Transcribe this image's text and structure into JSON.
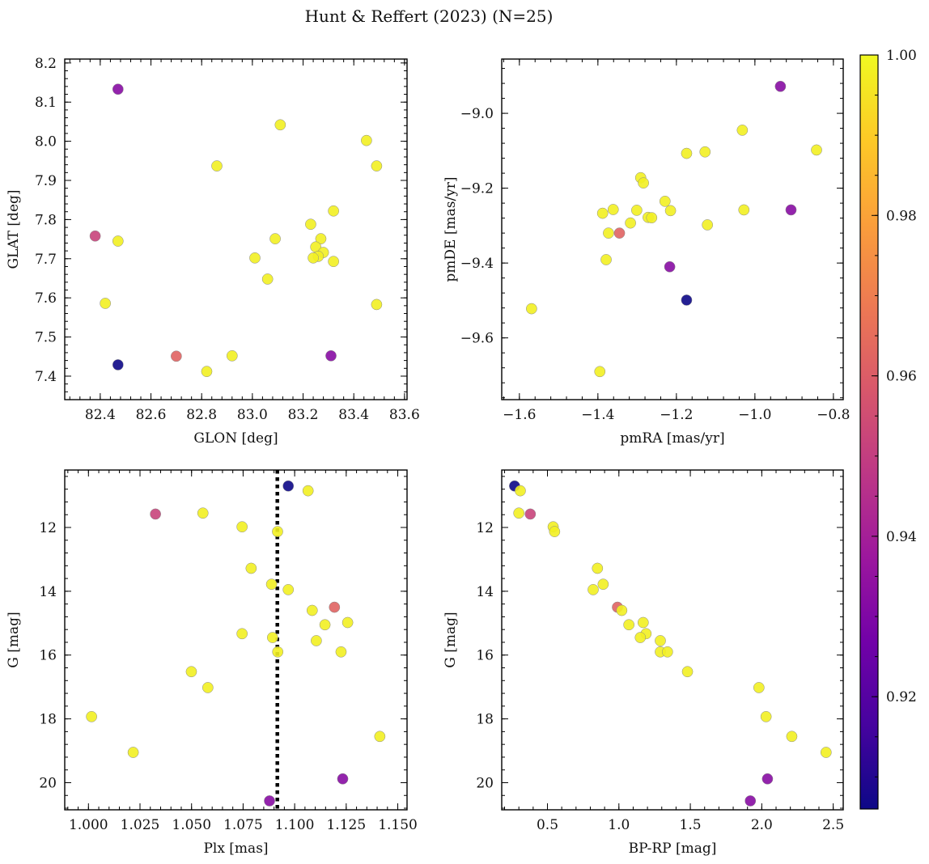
{
  "figure": {
    "title": "Hunt & Reffert (2023) (N=25)"
  },
  "colorbar": {
    "vmin": 0.906,
    "vmax": 1.0,
    "ticks": [
      0.92,
      0.94,
      0.96,
      0.98,
      1.0
    ],
    "tick_labels": [
      "0.92",
      "0.94",
      "0.96",
      "0.98",
      "1.00"
    ],
    "colormap": "plasma",
    "colormap_stops": [
      "#0d0887",
      "#46039f",
      "#7201a8",
      "#9c179e",
      "#bd3786",
      "#d8576b",
      "#ed7953",
      "#fb9f3a",
      "#fdca26",
      "#f0f921"
    ]
  },
  "chart_data": [
    {
      "type": "scatter",
      "id": "sky",
      "xlabel": "GLON [deg]",
      "ylabel": "GLAT [deg]",
      "xlim": [
        82.26,
        83.61
      ],
      "ylim": [
        7.34,
        8.21
      ],
      "xticks": [
        82.4,
        82.6,
        82.8,
        83.0,
        83.2,
        83.4,
        83.6
      ],
      "xtick_labels": [
        "82.4",
        "82.6",
        "82.8",
        "83.0",
        "83.2",
        "83.4",
        "83.6"
      ],
      "yticks": [
        7.4,
        7.5,
        7.6,
        7.7,
        7.8,
        7.9,
        8.0,
        8.1,
        8.2
      ],
      "ytick_labels": [
        "7.4",
        "7.5",
        "7.6",
        "7.7",
        "7.8",
        "7.9",
        "8.0",
        "8.1",
        "8.2"
      ],
      "points": [
        {
          "x": 82.47,
          "y": 8.133,
          "c": 0.932
        },
        {
          "x": 83.11,
          "y": 8.042,
          "c": 0.998
        },
        {
          "x": 83.45,
          "y": 8.002,
          "c": 0.998
        },
        {
          "x": 82.86,
          "y": 7.937,
          "c": 0.998
        },
        {
          "x": 83.49,
          "y": 7.937,
          "c": 0.998
        },
        {
          "x": 83.32,
          "y": 7.822,
          "c": 0.998
        },
        {
          "x": 83.23,
          "y": 7.788,
          "c": 0.998
        },
        {
          "x": 82.38,
          "y": 7.758,
          "c": 0.952
        },
        {
          "x": 82.47,
          "y": 7.745,
          "c": 0.998
        },
        {
          "x": 83.09,
          "y": 7.751,
          "c": 0.998
        },
        {
          "x": 83.27,
          "y": 7.751,
          "c": 0.998
        },
        {
          "x": 83.25,
          "y": 7.73,
          "c": 0.998
        },
        {
          "x": 83.28,
          "y": 7.716,
          "c": 0.998
        },
        {
          "x": 83.26,
          "y": 7.706,
          "c": 0.998
        },
        {
          "x": 83.24,
          "y": 7.702,
          "c": 0.998
        },
        {
          "x": 83.01,
          "y": 7.702,
          "c": 0.998
        },
        {
          "x": 83.32,
          "y": 7.693,
          "c": 0.998
        },
        {
          "x": 83.06,
          "y": 7.648,
          "c": 0.998
        },
        {
          "x": 82.42,
          "y": 7.586,
          "c": 0.998
        },
        {
          "x": 83.49,
          "y": 7.583,
          "c": 0.998
        },
        {
          "x": 82.7,
          "y": 7.451,
          "c": 0.962
        },
        {
          "x": 82.92,
          "y": 7.452,
          "c": 0.998
        },
        {
          "x": 83.31,
          "y": 7.452,
          "c": 0.932
        },
        {
          "x": 82.47,
          "y": 7.429,
          "c": 0.906
        },
        {
          "x": 82.82,
          "y": 7.412,
          "c": 0.998
        }
      ]
    },
    {
      "type": "scatter",
      "id": "pm",
      "xlabel": "pmRA [mas/yr]",
      "ylabel": "pmDE [mas/yr]",
      "xlim": [
        -1.645,
        -0.775
      ],
      "ylim": [
        -9.765,
        -8.855
      ],
      "xticks": [
        -1.6,
        -1.4,
        -1.2,
        -1.0,
        -0.8
      ],
      "xtick_labels": [
        "−1.6",
        "−1.4",
        "−1.2",
        "−1.0",
        "−0.8"
      ],
      "yticks": [
        -9.6,
        -9.4,
        -9.2,
        -9.0
      ],
      "ytick_labels": [
        "−9.6",
        "−9.4",
        "−9.2",
        "−9.0"
      ],
      "points": [
        {
          "x": -0.935,
          "y": -8.928,
          "c": 0.932
        },
        {
          "x": -1.032,
          "y": -9.045,
          "c": 0.998
        },
        {
          "x": -0.843,
          "y": -9.098,
          "c": 0.998
        },
        {
          "x": -1.127,
          "y": -9.103,
          "c": 0.998
        },
        {
          "x": -1.174,
          "y": -9.107,
          "c": 0.998
        },
        {
          "x": -1.291,
          "y": -9.172,
          "c": 0.998
        },
        {
          "x": -1.284,
          "y": -9.186,
          "c": 0.998
        },
        {
          "x": -1.229,
          "y": -9.235,
          "c": 0.998
        },
        {
          "x": -1.361,
          "y": -9.257,
          "c": 0.998
        },
        {
          "x": -1.301,
          "y": -9.259,
          "c": 0.998
        },
        {
          "x": -1.215,
          "y": -9.26,
          "c": 0.998
        },
        {
          "x": -1.028,
          "y": -9.258,
          "c": 0.998
        },
        {
          "x": -0.908,
          "y": -9.258,
          "c": 0.932
        },
        {
          "x": -1.388,
          "y": -9.267,
          "c": 0.998
        },
        {
          "x": -1.272,
          "y": -9.278,
          "c": 0.998
        },
        {
          "x": -1.263,
          "y": -9.279,
          "c": 0.998
        },
        {
          "x": -1.317,
          "y": -9.293,
          "c": 0.998
        },
        {
          "x": -1.121,
          "y": -9.298,
          "c": 0.998
        },
        {
          "x": -1.373,
          "y": -9.32,
          "c": 0.998
        },
        {
          "x": -1.345,
          "y": -9.32,
          "c": 0.962
        },
        {
          "x": -1.379,
          "y": -9.391,
          "c": 0.998
        },
        {
          "x": -1.217,
          "y": -9.41,
          "c": 0.932
        },
        {
          "x": -1.174,
          "y": -9.499,
          "c": 0.906
        },
        {
          "x": -1.569,
          "y": -9.522,
          "c": 0.998
        },
        {
          "x": -1.395,
          "y": -9.69,
          "c": 0.998
        }
      ]
    },
    {
      "type": "scatter",
      "id": "plx",
      "xlabel": "Plx [mas]",
      "ylabel": "G [mag]",
      "xlim": [
        0.9885,
        1.1545
      ],
      "ylim": [
        20.85,
        10.2
      ],
      "xticks": [
        1.0,
        1.025,
        1.05,
        1.075,
        1.1,
        1.125,
        1.15
      ],
      "xtick_labels": [
        "1.000",
        "1.025",
        "1.050",
        "1.075",
        "1.100",
        "1.125",
        "1.150"
      ],
      "yticks": [
        12,
        14,
        16,
        18,
        20
      ],
      "ytick_labels": [
        "12",
        "14",
        "16",
        "18",
        "20"
      ],
      "vline": {
        "x": 1.0916,
        "style": "dotted"
      },
      "points": [
        {
          "x": 1.0969,
          "y": 10.7,
          "c": 0.906
        },
        {
          "x": 1.1065,
          "y": 10.85,
          "c": 0.998
        },
        {
          "x": 1.0325,
          "y": 11.58,
          "c": 0.952
        },
        {
          "x": 1.0555,
          "y": 11.55,
          "c": 0.998
        },
        {
          "x": 1.0745,
          "y": 11.98,
          "c": 0.998
        },
        {
          "x": 1.0917,
          "y": 12.13,
          "c": 0.998
        },
        {
          "x": 1.0789,
          "y": 13.28,
          "c": 0.998
        },
        {
          "x": 1.0888,
          "y": 13.78,
          "c": 0.998
        },
        {
          "x": 1.0969,
          "y": 13.95,
          "c": 0.998
        },
        {
          "x": 1.1193,
          "y": 14.5,
          "c": 0.962
        },
        {
          "x": 1.1085,
          "y": 14.6,
          "c": 0.998
        },
        {
          "x": 1.1257,
          "y": 14.98,
          "c": 0.998
        },
        {
          "x": 1.1147,
          "y": 15.05,
          "c": 0.998
        },
        {
          "x": 1.0745,
          "y": 15.33,
          "c": 0.998
        },
        {
          "x": 1.0893,
          "y": 15.45,
          "c": 0.998
        },
        {
          "x": 1.1105,
          "y": 15.55,
          "c": 0.998
        },
        {
          "x": 1.0918,
          "y": 15.9,
          "c": 0.998
        },
        {
          "x": 1.1225,
          "y": 15.9,
          "c": 0.998
        },
        {
          "x": 1.0499,
          "y": 16.52,
          "c": 0.998
        },
        {
          "x": 1.0579,
          "y": 17.02,
          "c": 0.998
        },
        {
          "x": 1.0015,
          "y": 17.93,
          "c": 0.998
        },
        {
          "x": 1.1413,
          "y": 18.55,
          "c": 0.998
        },
        {
          "x": 1.0217,
          "y": 19.05,
          "c": 0.998
        },
        {
          "x": 1.1233,
          "y": 19.88,
          "c": 0.932
        },
        {
          "x": 1.0878,
          "y": 20.57,
          "c": 0.932
        }
      ]
    },
    {
      "type": "scatter",
      "id": "cmd",
      "xlabel": "BP-RP [mag]",
      "ylabel": "G [mag]",
      "xlim": [
        0.18,
        2.57
      ],
      "ylim": [
        20.85,
        10.2
      ],
      "xticks": [
        0.5,
        1.0,
        1.5,
        2.0,
        2.5
      ],
      "xtick_labels": [
        "0.5",
        "1.0",
        "1.5",
        "2.0",
        "2.5"
      ],
      "yticks": [
        12,
        14,
        16,
        18,
        20
      ],
      "ytick_labels": [
        "12",
        "14",
        "16",
        "18",
        "20"
      ],
      "points": [
        {
          "x": 0.27,
          "y": 10.7,
          "c": 0.906
        },
        {
          "x": 0.31,
          "y": 10.85,
          "c": 0.998
        },
        {
          "x": 0.3,
          "y": 11.55,
          "c": 0.998
        },
        {
          "x": 0.38,
          "y": 11.58,
          "c": 0.952
        },
        {
          "x": 0.54,
          "y": 11.98,
          "c": 0.998
        },
        {
          "x": 0.55,
          "y": 12.13,
          "c": 0.998
        },
        {
          "x": 0.85,
          "y": 13.28,
          "c": 0.998
        },
        {
          "x": 0.89,
          "y": 13.78,
          "c": 0.998
        },
        {
          "x": 0.82,
          "y": 13.95,
          "c": 0.998
        },
        {
          "x": 0.99,
          "y": 14.5,
          "c": 0.962
        },
        {
          "x": 1.02,
          "y": 14.6,
          "c": 0.998
        },
        {
          "x": 1.17,
          "y": 14.98,
          "c": 0.998
        },
        {
          "x": 1.07,
          "y": 15.05,
          "c": 0.998
        },
        {
          "x": 1.19,
          "y": 15.33,
          "c": 0.998
        },
        {
          "x": 1.15,
          "y": 15.45,
          "c": 0.998
        },
        {
          "x": 1.29,
          "y": 15.55,
          "c": 0.998
        },
        {
          "x": 1.29,
          "y": 15.9,
          "c": 0.998
        },
        {
          "x": 1.34,
          "y": 15.9,
          "c": 0.998
        },
        {
          "x": 1.48,
          "y": 16.52,
          "c": 0.998
        },
        {
          "x": 1.98,
          "y": 17.02,
          "c": 0.998
        },
        {
          "x": 2.03,
          "y": 17.93,
          "c": 0.998
        },
        {
          "x": 2.21,
          "y": 18.55,
          "c": 0.998
        },
        {
          "x": 2.45,
          "y": 19.05,
          "c": 0.998
        },
        {
          "x": 2.04,
          "y": 19.88,
          "c": 0.932
        },
        {
          "x": 1.92,
          "y": 20.57,
          "c": 0.932
        }
      ]
    }
  ]
}
